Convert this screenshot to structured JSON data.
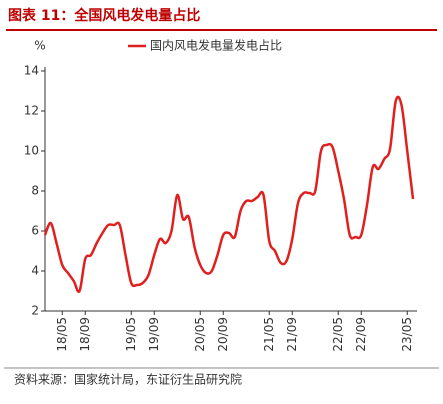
{
  "chart_data": {
    "type": "line",
    "title": "图表 11：全国风电发电量占比",
    "y_label": "%",
    "source": "资料来源：国家统计局，东证衍生品研究院",
    "categories": [
      null,
      null,
      null,
      "18/05",
      null,
      null,
      null,
      "18/09",
      null,
      null,
      null,
      null,
      null,
      null,
      null,
      "19/05",
      null,
      null,
      null,
      "19/09",
      null,
      null,
      null,
      null,
      null,
      null,
      null,
      "20/05",
      null,
      null,
      null,
      "20/09",
      null,
      null,
      null,
      null,
      null,
      null,
      null,
      "21/05",
      null,
      null,
      null,
      "21/09",
      null,
      null,
      null,
      null,
      null,
      null,
      null,
      "22/05",
      null,
      null,
      null,
      "22/09",
      null,
      null,
      null,
      null,
      null,
      null,
      null,
      "23/05",
      null
    ],
    "series": [
      {
        "name": "国内风电发电量发电占比",
        "color": "#e0201f",
        "values": [
          5.8,
          6.4,
          5.4,
          4.3,
          3.9,
          3.5,
          3.0,
          4.6,
          4.8,
          5.4,
          5.9,
          6.3,
          6.3,
          6.3,
          4.8,
          3.4,
          3.3,
          3.4,
          3.8,
          4.8,
          5.6,
          5.4,
          6.0,
          7.8,
          6.6,
          6.7,
          5.2,
          4.3,
          3.9,
          4.0,
          4.8,
          5.8,
          5.9,
          5.7,
          7.0,
          7.5,
          7.5,
          7.7,
          7.8,
          5.5,
          5.0,
          4.4,
          4.5,
          5.6,
          7.4,
          7.9,
          7.9,
          8.0,
          10.0,
          10.3,
          10.2,
          9.0,
          7.6,
          5.8,
          5.7,
          5.8,
          7.3,
          9.2,
          9.1,
          9.6,
          10.1,
          12.5,
          12.3,
          10.0,
          7.6
        ]
      }
    ],
    "ylim": [
      2,
      14
    ],
    "yticks": [
      2,
      4,
      6,
      8,
      10,
      12,
      14
    ]
  }
}
